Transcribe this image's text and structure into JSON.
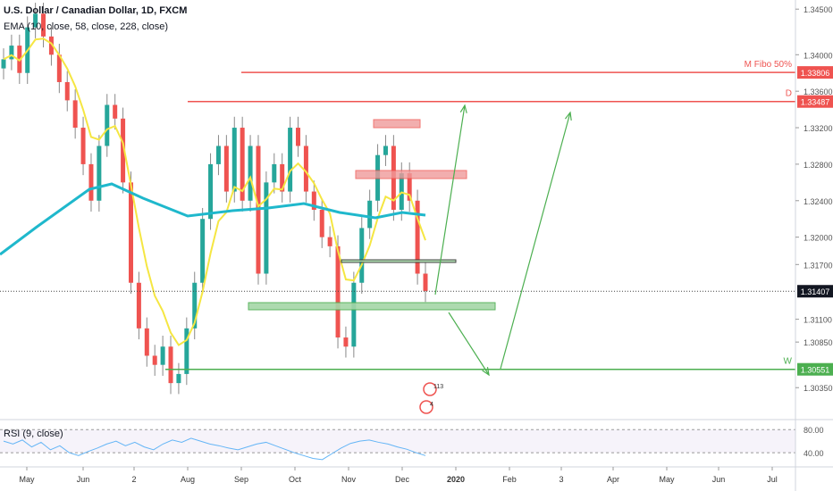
{
  "header": {
    "symbol_line": "U.S. Dollar / Canadian Dollar, 1D, FXCM",
    "indicator_line": "EMA (10, close, 58, close, 228, close)",
    "rsi_line": "RSI (9, close)"
  },
  "colors": {
    "up": "#26a69a",
    "down": "#ef5350",
    "wick": "#888888",
    "ema10": "#f5e642",
    "ema228": "#1fb8cc",
    "resistance": "#ef5350",
    "support": "#4caf50",
    "rsi": "#64b5f6",
    "current_price_label": "#131722"
  },
  "chart_data": [
    {
      "type": "candlestick",
      "title": "U.S. Dollar / Canadian Dollar, 1D, FXCM",
      "x_tick_labels": [
        "May",
        "Jun",
        "2",
        "Aug",
        "Sep",
        "Oct",
        "Nov",
        "Dec",
        "2020",
        "Feb",
        "3",
        "Apr",
        "May",
        "Jun",
        "Jul"
      ],
      "y_tick_labels": [
        "1.34500",
        "1.34000",
        "1.33600",
        "1.33200",
        "1.32800",
        "1.32400",
        "1.32000",
        "1.31700",
        "1.31100",
        "1.30850",
        "1.30350"
      ],
      "ylim": [
        1.3,
        1.346
      ],
      "current_price": "1.31407",
      "levels": [
        {
          "label": "M Fibo 50%",
          "price_label": "1.33806",
          "value": 1.33806,
          "type": "resistance"
        },
        {
          "label": "D",
          "price_label": "1.33487",
          "value": 1.33487,
          "type": "resistance"
        },
        {
          "label": "W",
          "price_label": "1.30551",
          "value": 1.30551,
          "type": "support"
        }
      ],
      "series": [
        {
          "values_close": [
            1.3395,
            1.341,
            1.338,
            1.343,
            1.3445,
            1.342,
            1.34,
            1.337,
            1.335,
            1.332,
            1.328,
            1.324,
            1.33,
            1.3345,
            1.333,
            1.326,
            1.315,
            1.31,
            1.307,
            1.306,
            1.308,
            1.304,
            1.305,
            1.31,
            1.315,
            1.322,
            1.328,
            1.33,
            1.325,
            1.332,
            1.324,
            1.33,
            1.316,
            1.326,
            1.328,
            1.325,
            1.332,
            1.33,
            1.325,
            1.323,
            1.32,
            1.319,
            1.309,
            1.308,
            1.315,
            1.321,
            1.324,
            1.329,
            1.33,
            1.323,
            1.327,
            1.324,
            1.316,
            1.3141
          ]
        },
        {
          "name": "EMA 10"
        },
        {
          "name": "EMA 228"
        }
      ],
      "annotations": [
        {
          "type": "event-icon",
          "value": "113"
        },
        {
          "type": "event-icon",
          "value": "4"
        }
      ]
    },
    {
      "type": "line",
      "title": "RSI (9, close)",
      "y_tick_labels": [
        "80.00",
        "40.00"
      ],
      "ylim": [
        20,
        85
      ],
      "series": [
        {
          "name": "RSI (9, close)",
          "values": [
            60,
            55,
            62,
            50,
            58,
            45,
            52,
            40,
            35,
            42,
            48,
            55,
            60,
            52,
            58,
            50,
            45,
            55,
            62,
            58,
            65,
            60,
            55,
            52,
            48,
            45,
            50,
            55,
            58,
            52,
            46,
            40,
            35,
            30,
            28,
            38,
            48,
            56,
            60,
            62,
            58,
            55,
            50,
            46,
            40,
            35
          ]
        }
      ]
    }
  ]
}
